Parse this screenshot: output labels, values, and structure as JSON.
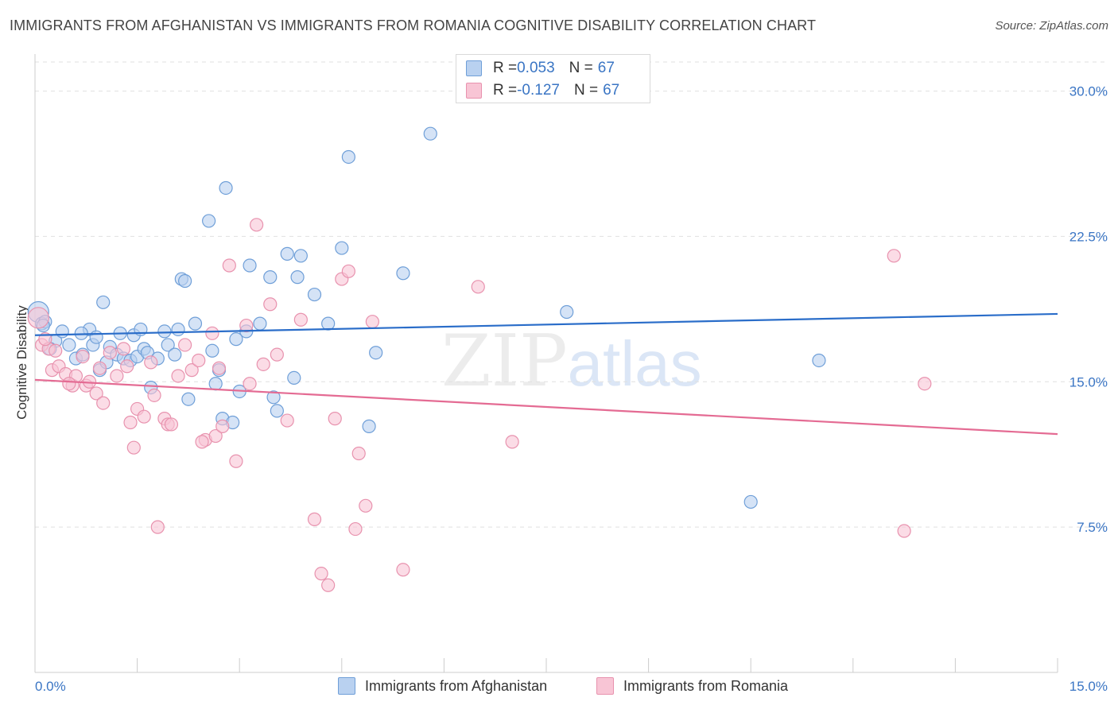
{
  "title": "IMMIGRANTS FROM AFGHANISTAN VS IMMIGRANTS FROM ROMANIA COGNITIVE DISABILITY CORRELATION CHART",
  "source": "Source: ZipAtlas.com",
  "watermark": {
    "zip": "ZIP",
    "atlas": "atlas"
  },
  "colors": {
    "blue_fill": "#b9d1f0",
    "blue_stroke": "#6f9fd8",
    "blue_line": "#2a6dc9",
    "pink_fill": "#f8c5d5",
    "pink_stroke": "#e892ae",
    "pink_line": "#e46b93",
    "axis_text": "#3a75c4",
    "grid": "#e0e0e0"
  },
  "legend_top": [
    {
      "r_label": "R = ",
      "r_value": "0.053",
      "n_label": "N = ",
      "n_value": "67"
    },
    {
      "r_label": "R = ",
      "r_value": "-0.127",
      "n_label": "N = ",
      "n_value": "67"
    }
  ],
  "chart_data": {
    "type": "scatter",
    "title": "IMMIGRANTS FROM AFGHANISTAN VS IMMIGRANTS FROM ROMANIA COGNITIVE DISABILITY CORRELATION CHART",
    "xlabel": "",
    "ylabel": "Cognitive Disability",
    "xlim": [
      0,
      15
    ],
    "ylim": [
      0,
      31.5
    ],
    "x_ticks_labeled": [
      "0.0%",
      "15.0%"
    ],
    "y_ticks": [
      7.5,
      15.0,
      22.5,
      30.0
    ],
    "y_tick_labels": [
      "7.5%",
      "15.0%",
      "22.5%",
      "30.0%"
    ],
    "grid": true,
    "legend_position": "bottom",
    "series": [
      {
        "name": "Immigrants from Afghanistan",
        "color": "#6f9fd8",
        "trend": {
          "x": [
            0,
            15
          ],
          "y": [
            17.4,
            18.5
          ]
        },
        "points": [
          [
            0.05,
            18.6
          ],
          [
            0.1,
            18.0
          ],
          [
            0.15,
            18.1
          ],
          [
            0.3,
            17.1
          ],
          [
            0.4,
            17.6
          ],
          [
            0.5,
            16.9
          ],
          [
            0.6,
            16.2
          ],
          [
            0.7,
            16.4
          ],
          [
            0.8,
            17.7
          ],
          [
            0.85,
            16.9
          ],
          [
            0.9,
            17.3
          ],
          [
            0.95,
            15.6
          ],
          [
            1.0,
            19.1
          ],
          [
            1.1,
            16.8
          ],
          [
            1.2,
            16.4
          ],
          [
            1.25,
            17.5
          ],
          [
            1.3,
            16.2
          ],
          [
            1.4,
            16.1
          ],
          [
            1.45,
            17.4
          ],
          [
            1.5,
            16.3
          ],
          [
            1.55,
            17.7
          ],
          [
            1.6,
            16.7
          ],
          [
            1.65,
            16.5
          ],
          [
            1.7,
            14.7
          ],
          [
            1.8,
            16.2
          ],
          [
            1.9,
            17.6
          ],
          [
            1.95,
            16.9
          ],
          [
            2.1,
            17.7
          ],
          [
            2.15,
            20.3
          ],
          [
            2.2,
            20.2
          ],
          [
            2.25,
            14.1
          ],
          [
            2.35,
            18.0
          ],
          [
            2.55,
            23.3
          ],
          [
            2.6,
            16.6
          ],
          [
            2.65,
            14.9
          ],
          [
            2.75,
            13.1
          ],
          [
            2.8,
            25.0
          ],
          [
            2.9,
            12.9
          ],
          [
            2.95,
            17.2
          ],
          [
            3.0,
            14.5
          ],
          [
            3.1,
            17.6
          ],
          [
            3.15,
            21.0
          ],
          [
            3.3,
            18.0
          ],
          [
            3.45,
            20.4
          ],
          [
            3.5,
            14.2
          ],
          [
            3.55,
            13.5
          ],
          [
            3.7,
            21.6
          ],
          [
            3.8,
            15.2
          ],
          [
            3.85,
            20.4
          ],
          [
            3.9,
            21.5
          ],
          [
            4.1,
            19.5
          ],
          [
            4.3,
            18.0
          ],
          [
            4.5,
            21.9
          ],
          [
            4.6,
            26.6
          ],
          [
            4.9,
            12.7
          ],
          [
            5.0,
            16.5
          ],
          [
            5.4,
            20.6
          ],
          [
            5.8,
            27.8
          ],
          [
            7.8,
            18.6
          ],
          [
            10.5,
            8.8
          ],
          [
            11.5,
            16.1
          ],
          [
            0.12,
            17.9
          ],
          [
            0.22,
            16.7
          ],
          [
            0.68,
            17.5
          ],
          [
            1.05,
            16.0
          ],
          [
            2.05,
            16.4
          ],
          [
            2.7,
            15.6
          ]
        ]
      },
      {
        "name": "Immigrants from Romania",
        "color": "#e892ae",
        "trend": {
          "x": [
            0,
            15
          ],
          "y": [
            15.1,
            12.3
          ]
        },
        "points": [
          [
            0.05,
            18.3
          ],
          [
            0.1,
            16.9
          ],
          [
            0.2,
            16.7
          ],
          [
            0.25,
            15.6
          ],
          [
            0.35,
            15.8
          ],
          [
            0.45,
            15.4
          ],
          [
            0.55,
            14.8
          ],
          [
            0.6,
            15.3
          ],
          [
            0.7,
            16.3
          ],
          [
            0.75,
            14.8
          ],
          [
            0.8,
            15.0
          ],
          [
            0.9,
            14.4
          ],
          [
            0.95,
            15.7
          ],
          [
            1.0,
            13.9
          ],
          [
            1.1,
            16.5
          ],
          [
            1.2,
            15.3
          ],
          [
            1.3,
            16.7
          ],
          [
            1.35,
            15.8
          ],
          [
            1.4,
            12.9
          ],
          [
            1.45,
            11.6
          ],
          [
            1.5,
            13.6
          ],
          [
            1.6,
            13.2
          ],
          [
            1.7,
            16.0
          ],
          [
            1.75,
            14.3
          ],
          [
            1.8,
            7.5
          ],
          [
            1.9,
            13.1
          ],
          [
            1.95,
            12.8
          ],
          [
            2.0,
            12.8
          ],
          [
            2.1,
            15.3
          ],
          [
            2.2,
            16.9
          ],
          [
            2.3,
            15.6
          ],
          [
            2.4,
            16.1
          ],
          [
            2.5,
            12.0
          ],
          [
            2.6,
            17.5
          ],
          [
            2.65,
            12.2
          ],
          [
            2.7,
            15.7
          ],
          [
            2.75,
            12.7
          ],
          [
            2.85,
            21.0
          ],
          [
            2.95,
            10.9
          ],
          [
            3.1,
            17.9
          ],
          [
            3.15,
            14.9
          ],
          [
            3.25,
            23.1
          ],
          [
            3.35,
            15.9
          ],
          [
            3.45,
            19.0
          ],
          [
            3.55,
            16.4
          ],
          [
            3.7,
            13.0
          ],
          [
            3.9,
            18.2
          ],
          [
            4.1,
            7.9
          ],
          [
            4.2,
            5.1
          ],
          [
            4.3,
            4.5
          ],
          [
            4.4,
            13.1
          ],
          [
            4.5,
            20.3
          ],
          [
            4.6,
            20.7
          ],
          [
            4.7,
            7.4
          ],
          [
            4.75,
            11.3
          ],
          [
            4.85,
            8.6
          ],
          [
            4.95,
            18.1
          ],
          [
            5.4,
            5.3
          ],
          [
            6.5,
            19.9
          ],
          [
            7.0,
            11.9
          ],
          [
            12.6,
            21.5
          ],
          [
            12.75,
            7.3
          ],
          [
            13.05,
            14.9
          ],
          [
            0.15,
            17.2
          ],
          [
            0.3,
            16.6
          ],
          [
            0.5,
            14.9
          ],
          [
            2.45,
            11.9
          ]
        ]
      }
    ]
  },
  "bottom_legend": [
    "Immigrants from Afghanistan",
    "Immigrants from Romania"
  ],
  "x_axis_labels": {
    "left": "0.0%",
    "right": "15.0%"
  }
}
